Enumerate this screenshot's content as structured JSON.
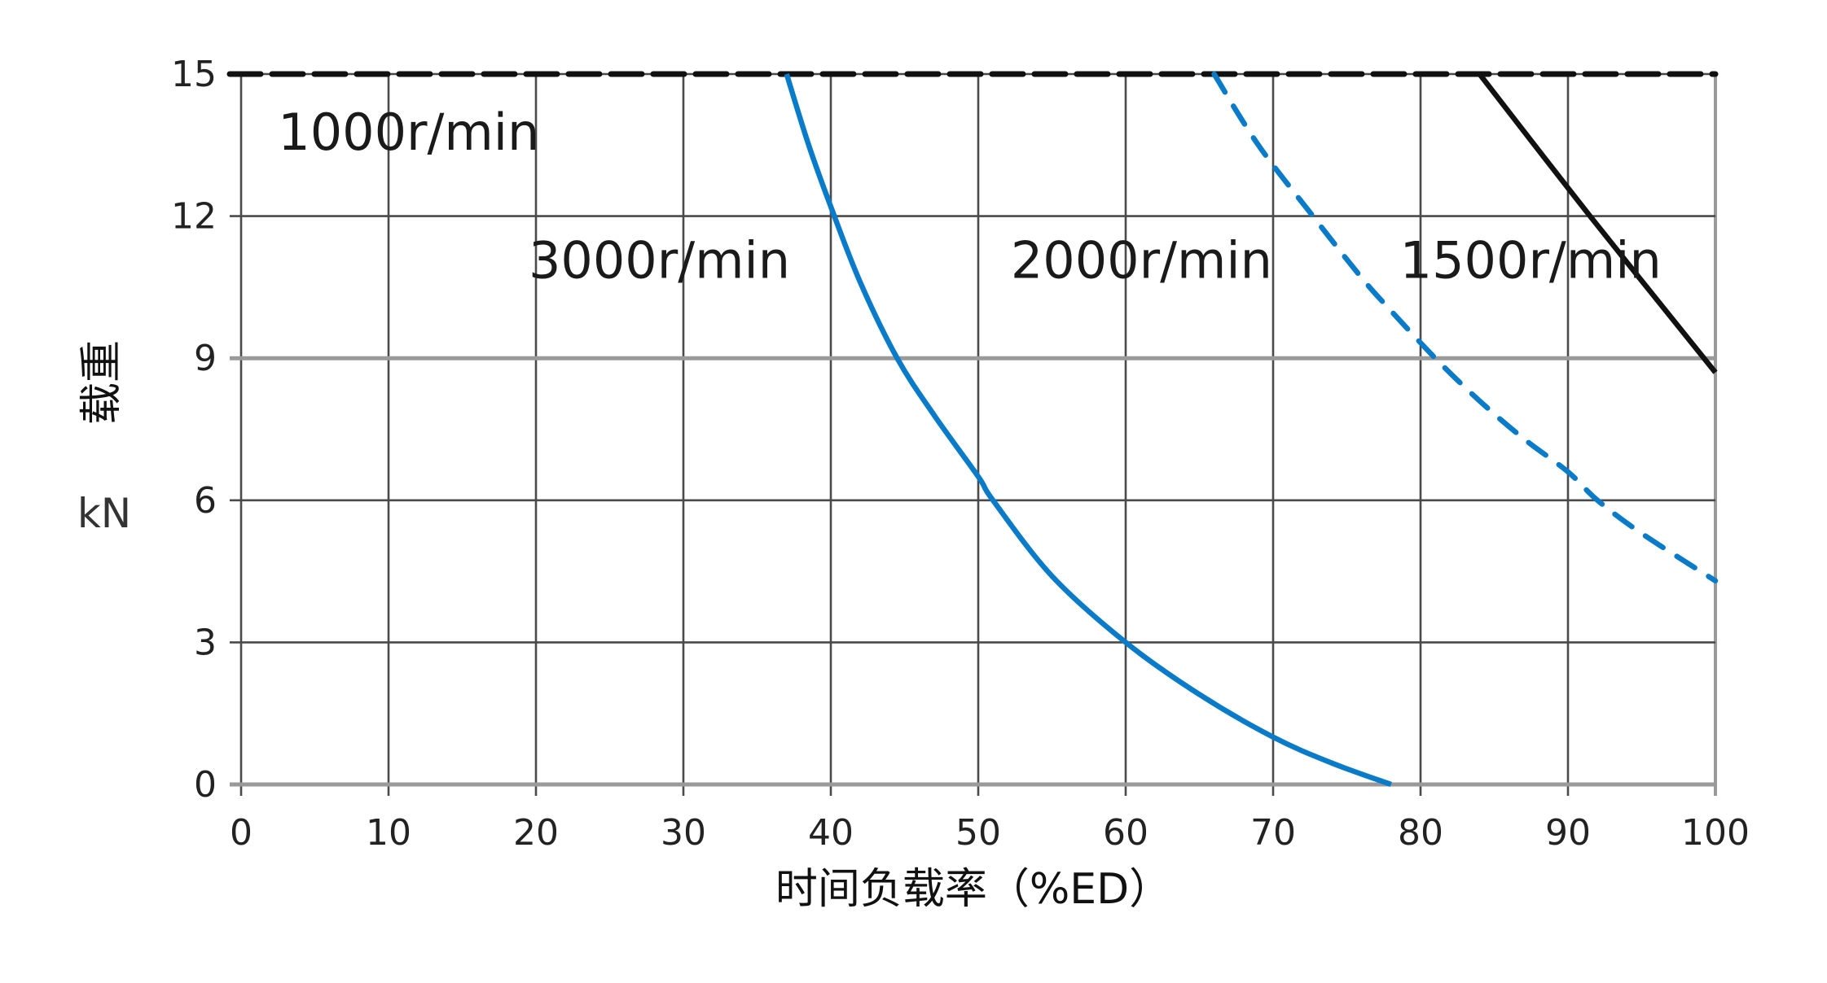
{
  "chart_data": {
    "type": "line",
    "title": "",
    "xlabel": "时间负载率（%ED）",
    "ylabel": "载重",
    "yunit": "kN",
    "xlim": [
      0,
      100
    ],
    "ylim": [
      0,
      15
    ],
    "xticks": [
      0,
      10,
      20,
      30,
      40,
      50,
      60,
      70,
      80,
      90,
      100
    ],
    "yticks": [
      0,
      3,
      6,
      9,
      12,
      15
    ],
    "grid": true,
    "legend": "inline labels",
    "series": [
      {
        "name": "1000r/min",
        "color": "#111111",
        "style": "dashed",
        "x": [
          0,
          100
        ],
        "y": [
          15,
          15
        ]
      },
      {
        "name": "3000r/min",
        "color": "#0a7bc8",
        "style": "solid",
        "x": [
          37,
          38.5,
          40,
          42,
          44.5,
          47,
          50,
          51,
          55,
          60,
          65,
          70,
          74,
          78
        ],
        "y": [
          15,
          13.5,
          12.2,
          10.6,
          9,
          7.8,
          6.5,
          6,
          4.4,
          3,
          1.9,
          1,
          0.45,
          0
        ]
      },
      {
        "name": "2000r/min",
        "color": "#0a7bc8",
        "style": "dashed",
        "x": [
          66,
          69,
          72.7,
          76,
          78,
          81,
          84,
          87,
          90,
          92,
          95,
          100
        ],
        "y": [
          15,
          13.5,
          12,
          10.7,
          10,
          9,
          8.1,
          7.3,
          6.6,
          6,
          5.3,
          4.3
        ]
      },
      {
        "name": "1500r/min",
        "color": "#111111",
        "style": "solid",
        "x": [
          84,
          91.5,
          100
        ],
        "y": [
          15,
          12,
          8.7
        ]
      }
    ],
    "annotations": [
      {
        "text": "1000r/min",
        "x": 2.5,
        "y": 13.4
      },
      {
        "text": "3000r/min",
        "x": 19.5,
        "y": 10.7
      },
      {
        "text": "2000r/min",
        "x": 52.2,
        "y": 10.7
      },
      {
        "text": "1500r/min",
        "x": 78.6,
        "y": 10.7
      }
    ]
  },
  "labels": {
    "x_axis_title": "时间负载率（%ED）",
    "y_axis_title": "载重",
    "y_axis_unit": "kN"
  },
  "colors": {
    "grid": "#4a4a4a",
    "grid_light": "#9a9a9a",
    "blue": "#0a7bc8",
    "black": "#111111"
  }
}
